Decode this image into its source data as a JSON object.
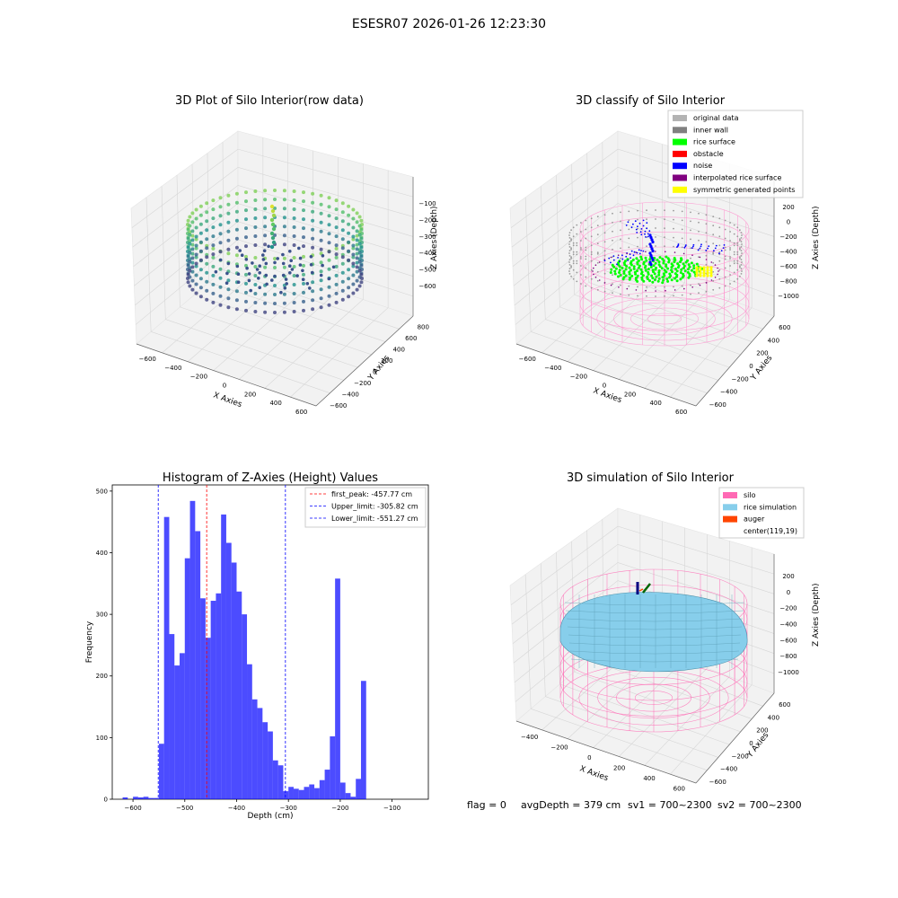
{
  "suptitle": "ESESR07 2026-01-26 12:23:30",
  "panels": {
    "raw": {
      "title": "3D Plot of Silo Interior(row data)",
      "xlabel": "X Axies",
      "ylabel": "Y Axies",
      "zlabel": "Z Axies (Depth)",
      "xticks": [
        "−600",
        "−400",
        "−200",
        "0",
        "200",
        "400",
        "600"
      ],
      "yticks": [
        "−600",
        "−400",
        "−200",
        "0",
        "200",
        "400",
        "600",
        "800"
      ],
      "zticks": [
        "−100",
        "−200",
        "−300",
        "−400",
        "−500",
        "−600"
      ]
    },
    "classify": {
      "title": "3D classify of Silo Interior",
      "xlabel": "X Axies",
      "ylabel": "Y Axies",
      "zlabel": "Z Axies (Depth)",
      "xticks": [
        "−600",
        "−400",
        "−200",
        "0",
        "200",
        "400",
        "600"
      ],
      "yticks": [
        "−600",
        "−400",
        "−200",
        "0",
        "200",
        "400",
        "600"
      ],
      "zticks": [
        "200",
        "0",
        "−200",
        "−400",
        "−600",
        "−800",
        "−1000"
      ],
      "legend": [
        {
          "label": "original data",
          "color": "#b3b3b3"
        },
        {
          "label": "inner wall",
          "color": "#808080"
        },
        {
          "label": "rice surface",
          "color": "#00ff00"
        },
        {
          "label": "obstacle",
          "color": "#ff0000"
        },
        {
          "label": "noise",
          "color": "#0000ff"
        },
        {
          "label": "interpolated rice surface",
          "color": "#800080"
        },
        {
          "label": "symmetric generated points",
          "color": "#ffff00"
        }
      ]
    },
    "simulation": {
      "title": "3D simulation of Silo Interior",
      "xlabel": "X Axies",
      "ylabel": "Y Axies",
      "zlabel": "Z Axies (Depth)",
      "xticks": [
        "−400",
        "−200",
        "0",
        "200",
        "400",
        "600"
      ],
      "yticks": [
        "−600",
        "−400",
        "−200",
        "0",
        "200",
        "400",
        "600"
      ],
      "zticks": [
        "200",
        "0",
        "−200",
        "−400",
        "−600",
        "−800",
        "−1000"
      ],
      "legend": [
        {
          "label": "silo",
          "color": "#ff69b4"
        },
        {
          "label": "rice simulation",
          "color": "#87ceeb"
        },
        {
          "label": "auger",
          "color": "#ff4500"
        },
        {
          "label": "center(119,19)",
          "color": ""
        }
      ]
    }
  },
  "chart_data": {
    "type": "bar",
    "title": "Histogram of Z-Axies (Height) Values",
    "xlabel": "Depth (cm)",
    "ylabel": "Frequency",
    "xlim": [
      -640,
      -30
    ],
    "ylim": [
      0,
      510
    ],
    "xticks": [
      -600,
      -500,
      -400,
      -300,
      -200,
      -100
    ],
    "xtick_labels": [
      "−600",
      "−500",
      "−400",
      "−300",
      "−200",
      "−100"
    ],
    "yticks": [
      0,
      100,
      200,
      300,
      400,
      500
    ],
    "bar_color": "#0000ff",
    "bins": [
      {
        "x0": -620,
        "x1": -610,
        "v": 3
      },
      {
        "x0": -610,
        "x1": -600,
        "v": 0
      },
      {
        "x0": -600,
        "x1": -590,
        "v": 4
      },
      {
        "x0": -590,
        "x1": -580,
        "v": 3
      },
      {
        "x0": -580,
        "x1": -570,
        "v": 4
      },
      {
        "x0": -570,
        "x1": -560,
        "v": 2
      },
      {
        "x0": -560,
        "x1": -550,
        "v": 2
      },
      {
        "x0": -550,
        "x1": -540,
        "v": 90
      },
      {
        "x0": -540,
        "x1": -530,
        "v": 458
      },
      {
        "x0": -530,
        "x1": -520,
        "v": 268
      },
      {
        "x0": -520,
        "x1": -510,
        "v": 217
      },
      {
        "x0": -510,
        "x1": -500,
        "v": 237
      },
      {
        "x0": -500,
        "x1": -490,
        "v": 391
      },
      {
        "x0": -490,
        "x1": -480,
        "v": 484
      },
      {
        "x0": -480,
        "x1": -470,
        "v": 435
      },
      {
        "x0": -470,
        "x1": -460,
        "v": 326
      },
      {
        "x0": -460,
        "x1": -450,
        "v": 262
      },
      {
        "x0": -450,
        "x1": -440,
        "v": 322
      },
      {
        "x0": -440,
        "x1": -430,
        "v": 334
      },
      {
        "x0": -430,
        "x1": -420,
        "v": 462
      },
      {
        "x0": -420,
        "x1": -410,
        "v": 416
      },
      {
        "x0": -410,
        "x1": -400,
        "v": 384
      },
      {
        "x0": -400,
        "x1": -390,
        "v": 337
      },
      {
        "x0": -390,
        "x1": -380,
        "v": 300
      },
      {
        "x0": -380,
        "x1": -370,
        "v": 219
      },
      {
        "x0": -370,
        "x1": -360,
        "v": 162
      },
      {
        "x0": -360,
        "x1": -350,
        "v": 148
      },
      {
        "x0": -350,
        "x1": -340,
        "v": 125
      },
      {
        "x0": -340,
        "x1": -330,
        "v": 110
      },
      {
        "x0": -330,
        "x1": -320,
        "v": 63
      },
      {
        "x0": -320,
        "x1": -310,
        "v": 55
      },
      {
        "x0": -310,
        "x1": -300,
        "v": 13
      },
      {
        "x0": -300,
        "x1": -290,
        "v": 20
      },
      {
        "x0": -290,
        "x1": -280,
        "v": 17
      },
      {
        "x0": -280,
        "x1": -270,
        "v": 15
      },
      {
        "x0": -270,
        "x1": -260,
        "v": 20
      },
      {
        "x0": -260,
        "x1": -250,
        "v": 24
      },
      {
        "x0": -250,
        "x1": -240,
        "v": 18
      },
      {
        "x0": -240,
        "x1": -230,
        "v": 31
      },
      {
        "x0": -230,
        "x1": -220,
        "v": 48
      },
      {
        "x0": -220,
        "x1": -210,
        "v": 102
      },
      {
        "x0": -210,
        "x1": -200,
        "v": 358
      },
      {
        "x0": -200,
        "x1": -190,
        "v": 27
      },
      {
        "x0": -190,
        "x1": -180,
        "v": 10
      },
      {
        "x0": -180,
        "x1": -170,
        "v": 4
      },
      {
        "x0": -170,
        "x1": -160,
        "v": 33
      },
      {
        "x0": -160,
        "x1": -150,
        "v": 192
      }
    ],
    "vlines": [
      {
        "label": "first_peak: -457.77 cm",
        "x": -457.77,
        "color": "#ff0000"
      },
      {
        "label": "Upper_limit: -305.82 cm",
        "x": -305.82,
        "color": "#0000ff"
      },
      {
        "label": "Lower_limit: -551.27 cm",
        "x": -551.27,
        "color": "#0000ff"
      }
    ]
  },
  "footer": {
    "flag": "flag = 0",
    "avg": "avgDepth = 379 cm",
    "sv1": "sv1 = 700~2300",
    "sv2": "sv2 = 700~2300"
  }
}
